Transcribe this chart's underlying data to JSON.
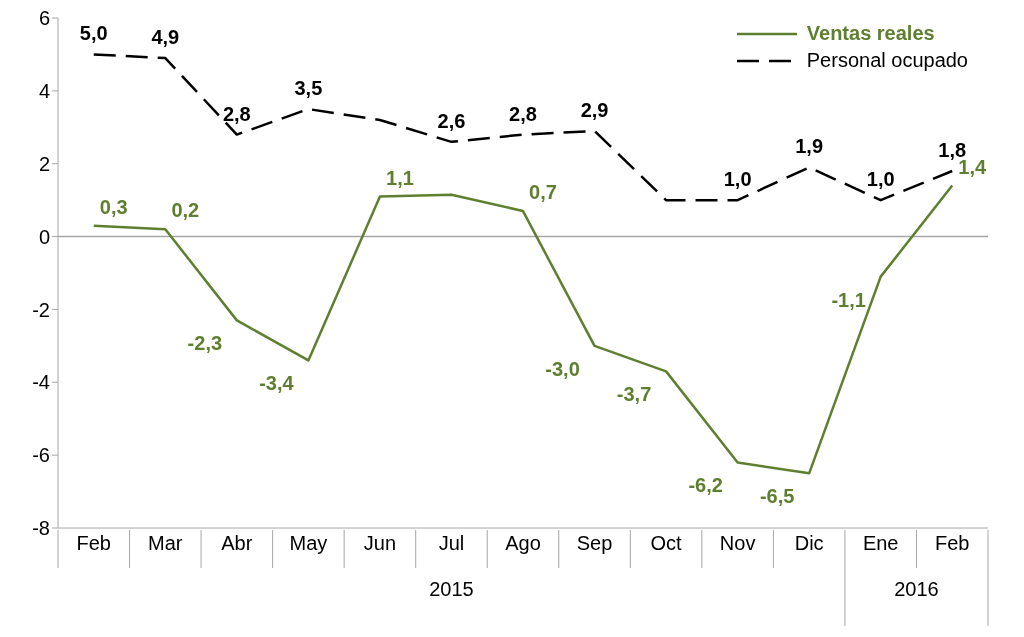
{
  "chart_data": {
    "type": "line",
    "categories": [
      "Feb",
      "Mar",
      "Abr",
      "May",
      "Jun",
      "Jul",
      "Ago",
      "Sep",
      "Oct",
      "Nov",
      "Dic",
      "Ene",
      "Feb"
    ],
    "series": [
      {
        "name": "Ventas reales",
        "color": "#5e7f2f",
        "line_style": "solid",
        "values": [
          0.3,
          0.2,
          -2.3,
          -3.4,
          1.1,
          1.15,
          0.7,
          -3.0,
          -3.7,
          -6.2,
          -6.5,
          -1.1,
          1.4
        ],
        "value_labels": [
          "0,3",
          "0,2",
          "-2,3",
          "-3,4",
          "1,1",
          null,
          "0,7",
          "-3,0",
          "-3,7",
          "-6,2",
          "-6,5",
          "-1,1",
          "1,4"
        ]
      },
      {
        "name": "Personal ocupado",
        "color": "#000000",
        "line_style": "dashed",
        "values": [
          5.0,
          4.9,
          2.8,
          3.5,
          3.2,
          2.6,
          2.8,
          2.9,
          1.0,
          1.0,
          1.9,
          1.0,
          1.8
        ],
        "value_labels": [
          "5,0",
          "4,9",
          "2,8",
          "3,5",
          null,
          "2,6",
          "2,8",
          "2,9",
          null,
          "1,0",
          "1,9",
          "1,0",
          "1,8"
        ]
      }
    ],
    "ylim": [
      -8,
      6
    ],
    "yticks": [
      -8,
      -6,
      -4,
      -2,
      0,
      2,
      4,
      6
    ],
    "grid": false,
    "legend": "top right",
    "marker": "none",
    "ref_lines": [
      {
        "axis": "y",
        "value": 0,
        "color": "#a6a6a6"
      }
    ],
    "annotations": [
      "2015",
      "2016"
    ]
  }
}
